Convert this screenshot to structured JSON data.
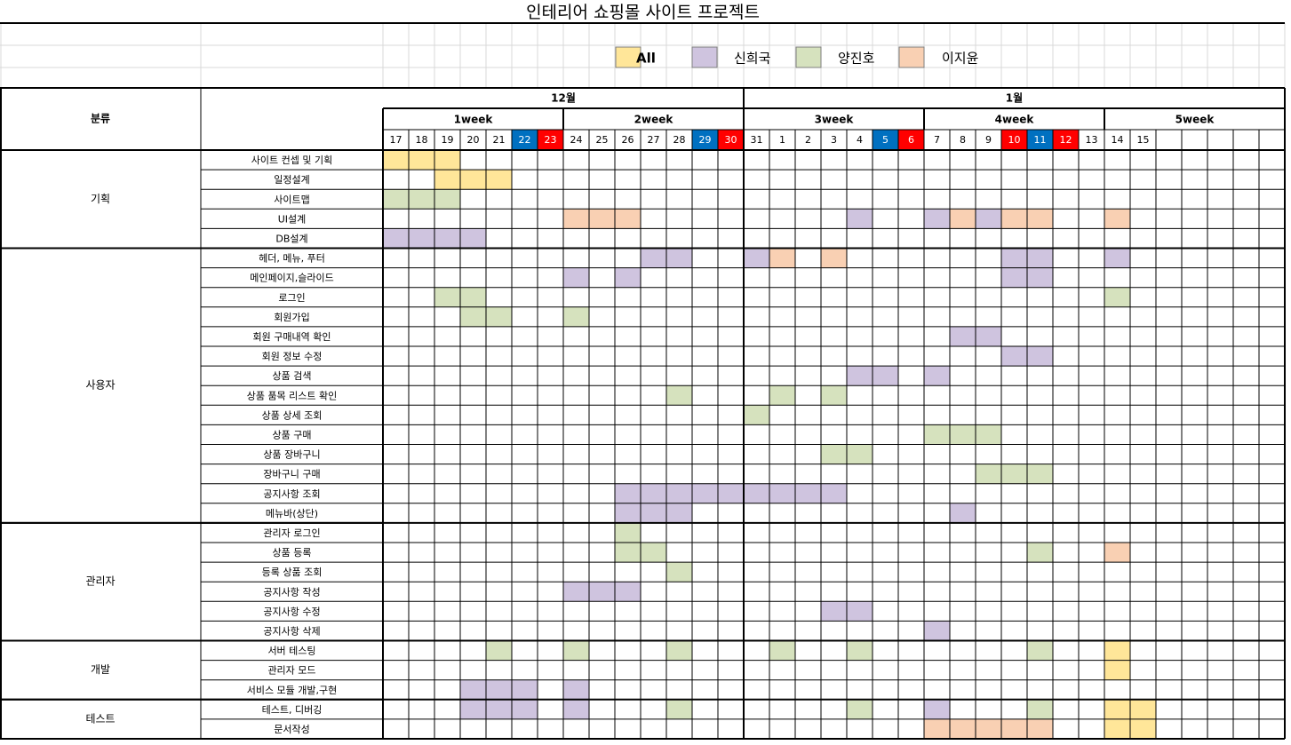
{
  "title": "인테리어 쇼핑몰 사이트 프로젝트",
  "legend": [
    {
      "label": "All",
      "color": "#FFE699",
      "bold": true
    },
    {
      "label": "신희국",
      "color": "#CFC4DF",
      "bold": false
    },
    {
      "label": "양진호",
      "color": "#D6E2BE",
      "bold": false
    },
    {
      "label": "이지윤",
      "color": "#F9D0B3",
      "bold": false
    }
  ],
  "header": {
    "category_label": "분류",
    "months": [
      {
        "label": "12월"
      },
      {
        "label": "1월"
      }
    ],
    "weeks": [
      "1week",
      "2week",
      "3week",
      "4week",
      "5week"
    ],
    "days": [
      "17",
      "18",
      "19",
      "20",
      "21",
      "22",
      "23",
      "24",
      "25",
      "26",
      "27",
      "28",
      "29",
      "30",
      "31",
      "1",
      "2",
      "3",
      "4",
      "5",
      "6",
      "7",
      "8",
      "9",
      "10",
      "11",
      "12",
      "13",
      "14",
      "15",
      "",
      "",
      "",
      "",
      "",
      ""
    ],
    "day_styles": {
      "5": "sat",
      "6": "sun",
      "12": "sat",
      "13": "sun",
      "19": "sat",
      "20": "sun",
      "24": "sun",
      "25": "sat",
      "26": "sun"
    }
  },
  "colors": {
    "A": "#FFE699",
    "S": "#CFC4DF",
    "Y": "#D6E2BE",
    "J": "#F9D0B3",
    "sat": "#0070C0",
    "sun": "#FF0000"
  },
  "groups": [
    {
      "label": "기획",
      "rows": [
        0,
        5
      ]
    },
    {
      "label": "사용자",
      "rows": [
        5,
        19
      ]
    },
    {
      "label": "관리자",
      "rows": [
        19,
        25
      ]
    },
    {
      "label": "개발",
      "rows": [
        25,
        28
      ]
    },
    {
      "label": "테스트",
      "rows": [
        28,
        30
      ]
    }
  ],
  "tasks": [
    {
      "name": "사이트 컨셉 및 기획",
      "cells": [
        [
          0,
          "A"
        ],
        [
          1,
          "A"
        ],
        [
          2,
          "A"
        ]
      ]
    },
    {
      "name": "일정설계",
      "cells": [
        [
          2,
          "A"
        ],
        [
          3,
          "A"
        ],
        [
          4,
          "A"
        ]
      ]
    },
    {
      "name": "사이트맵",
      "cells": [
        [
          0,
          "Y"
        ],
        [
          1,
          "Y"
        ],
        [
          2,
          "Y"
        ]
      ]
    },
    {
      "name": "UI설계",
      "cells": [
        [
          7,
          "J"
        ],
        [
          8,
          "J"
        ],
        [
          9,
          "J"
        ],
        [
          18,
          "S"
        ],
        [
          21,
          "S"
        ],
        [
          22,
          "J"
        ],
        [
          23,
          "S"
        ],
        [
          24,
          "J"
        ],
        [
          25,
          "J"
        ],
        [
          28,
          "J"
        ]
      ]
    },
    {
      "name": "DB설계",
      "cells": [
        [
          0,
          "S"
        ],
        [
          1,
          "S"
        ],
        [
          2,
          "S"
        ],
        [
          3,
          "S"
        ]
      ]
    },
    {
      "name": "헤더, 메뉴, 푸터",
      "cells": [
        [
          10,
          "S"
        ],
        [
          11,
          "S"
        ],
        [
          14,
          "S"
        ],
        [
          15,
          "J"
        ],
        [
          17,
          "J"
        ],
        [
          24,
          "S"
        ],
        [
          25,
          "S"
        ],
        [
          28,
          "S"
        ]
      ]
    },
    {
      "name": "메인페이지,슬라이드",
      "cells": [
        [
          7,
          "S"
        ],
        [
          9,
          "S"
        ],
        [
          24,
          "S"
        ],
        [
          25,
          "S"
        ]
      ]
    },
    {
      "name": "로그인",
      "cells": [
        [
          2,
          "Y"
        ],
        [
          3,
          "Y"
        ],
        [
          28,
          "Y"
        ]
      ]
    },
    {
      "name": "회원가입",
      "cells": [
        [
          3,
          "Y"
        ],
        [
          4,
          "Y"
        ],
        [
          7,
          "Y"
        ]
      ]
    },
    {
      "name": "회원 구매내역 확인",
      "cells": [
        [
          22,
          "S"
        ],
        [
          23,
          "S"
        ]
      ]
    },
    {
      "name": "회원 정보 수정",
      "cells": [
        [
          24,
          "S"
        ],
        [
          25,
          "S"
        ]
      ]
    },
    {
      "name": "상품 검색",
      "cells": [
        [
          18,
          "S"
        ],
        [
          19,
          "S"
        ],
        [
          21,
          "S"
        ]
      ]
    },
    {
      "name": "상품 품목 리스트 확인",
      "cells": [
        [
          11,
          "Y"
        ],
        [
          15,
          "Y"
        ],
        [
          17,
          "Y"
        ]
      ]
    },
    {
      "name": "상품 상세 조회",
      "cells": [
        [
          14,
          "Y"
        ]
      ]
    },
    {
      "name": "상품 구매",
      "cells": [
        [
          21,
          "Y"
        ],
        [
          22,
          "Y"
        ],
        [
          23,
          "Y"
        ]
      ]
    },
    {
      "name": "상품 장바구니",
      "cells": [
        [
          17,
          "Y"
        ],
        [
          18,
          "Y"
        ]
      ]
    },
    {
      "name": "장바구니 구매",
      "cells": [
        [
          23,
          "Y"
        ],
        [
          24,
          "Y"
        ],
        [
          25,
          "Y"
        ]
      ]
    },
    {
      "name": "공지사항 조회",
      "cells": [
        [
          9,
          "S"
        ],
        [
          10,
          "S"
        ],
        [
          11,
          "S"
        ],
        [
          12,
          "S"
        ],
        [
          13,
          "S"
        ],
        [
          14,
          "S"
        ],
        [
          15,
          "S"
        ],
        [
          16,
          "S"
        ],
        [
          17,
          "S"
        ]
      ]
    },
    {
      "name": "메뉴바(상단)",
      "cells": [
        [
          9,
          "S"
        ],
        [
          10,
          "S"
        ],
        [
          11,
          "S"
        ],
        [
          22,
          "S"
        ]
      ]
    },
    {
      "name": "관리자 로그인",
      "cells": [
        [
          9,
          "Y"
        ]
      ]
    },
    {
      "name": "상품 등록",
      "cells": [
        [
          9,
          "Y"
        ],
        [
          10,
          "Y"
        ],
        [
          25,
          "Y"
        ],
        [
          28,
          "J"
        ]
      ]
    },
    {
      "name": "등록 상품 조회",
      "cells": [
        [
          11,
          "Y"
        ]
      ]
    },
    {
      "name": "공지사항 작성",
      "cells": [
        [
          7,
          "S"
        ],
        [
          8,
          "S"
        ],
        [
          9,
          "S"
        ]
      ]
    },
    {
      "name": "공지사항 수정",
      "cells": [
        [
          17,
          "S"
        ],
        [
          18,
          "S"
        ]
      ]
    },
    {
      "name": "공지사항 삭제",
      "cells": [
        [
          21,
          "S"
        ]
      ]
    },
    {
      "name": "서버 테스팅",
      "cells": [
        [
          4,
          "Y"
        ],
        [
          7,
          "Y"
        ],
        [
          11,
          "Y"
        ],
        [
          15,
          "Y"
        ],
        [
          18,
          "Y"
        ],
        [
          25,
          "Y"
        ],
        [
          28,
          "A"
        ]
      ]
    },
    {
      "name": "관리자 모드",
      "cells": [
        [
          28,
          "A"
        ]
      ]
    },
    {
      "name": "서비스 모듈 개발,구현",
      "cells": [
        [
          3,
          "S"
        ],
        [
          4,
          "S"
        ],
        [
          5,
          "S"
        ],
        [
          7,
          "S"
        ]
      ]
    },
    {
      "name": "테스트, 디버깅",
      "cells": [
        [
          3,
          "S"
        ],
        [
          4,
          "S"
        ],
        [
          5,
          "S"
        ],
        [
          7,
          "S"
        ],
        [
          11,
          "Y"
        ],
        [
          18,
          "Y"
        ],
        [
          21,
          "S"
        ],
        [
          25,
          "Y"
        ],
        [
          28,
          "A"
        ],
        [
          29,
          "A"
        ]
      ]
    },
    {
      "name": "문서작성",
      "cells": [
        [
          21,
          "J"
        ],
        [
          22,
          "J"
        ],
        [
          23,
          "J"
        ],
        [
          24,
          "J"
        ],
        [
          25,
          "J"
        ],
        [
          28,
          "A"
        ],
        [
          29,
          "A"
        ]
      ]
    }
  ]
}
